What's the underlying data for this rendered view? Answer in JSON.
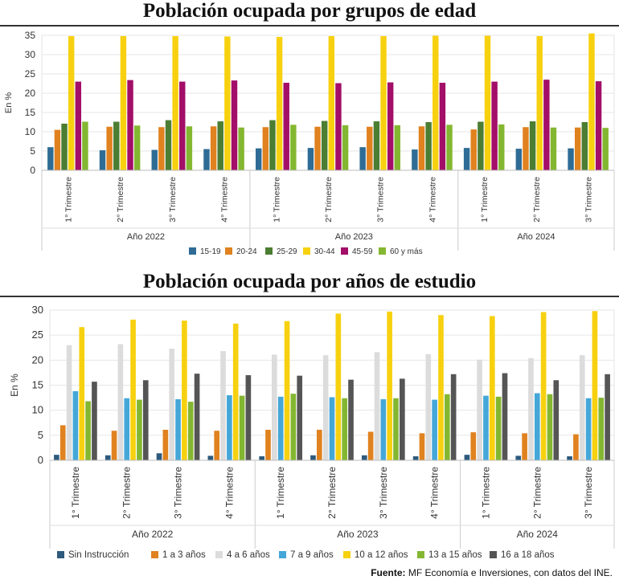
{
  "charts": [
    {
      "type": "bar",
      "title": "Población ocupada por grupos de edad",
      "ylabel": "En %",
      "ylim": [
        0,
        35
      ],
      "yticks": [
        0,
        5,
        10,
        15,
        20,
        25,
        30,
        35
      ],
      "categories": [
        "1° Trimestre",
        "2° Trimestre",
        "3° Trimestre",
        "4° Trimestre",
        "1° Trimestre",
        "2° Trimestre",
        "3° Trimestre",
        "4° Trimestre",
        "1° Trimestre",
        "2° Trimestre",
        "3° Trimestre"
      ],
      "groups": [
        {
          "label": "Año 2022",
          "count": 4
        },
        {
          "label": "Año 2023",
          "count": 4
        },
        {
          "label": "Año 2024",
          "count": 3
        }
      ],
      "series": [
        {
          "name": "15-19",
          "color": "#2e6c95",
          "values": [
            6.0,
            5.2,
            5.3,
            5.5,
            5.7,
            5.8,
            6.0,
            5.4,
            5.8,
            5.6,
            5.7
          ]
        },
        {
          "name": "20-24",
          "color": "#e0821f",
          "values": [
            10.5,
            11.3,
            11.2,
            11.4,
            11.2,
            11.3,
            11.3,
            11.4,
            10.6,
            11.2,
            11.1
          ]
        },
        {
          "name": "25-29",
          "color": "#4b7d32",
          "values": [
            12.1,
            12.6,
            13.0,
            12.7,
            13.0,
            12.8,
            12.7,
            12.5,
            12.6,
            12.7,
            12.5
          ]
        },
        {
          "name": "30-44",
          "color": "#f7d110",
          "values": [
            34.8,
            34.8,
            34.8,
            34.7,
            34.6,
            34.8,
            34.8,
            34.9,
            34.9,
            34.8,
            35.5
          ]
        },
        {
          "name": "45-59",
          "color": "#a30e68",
          "values": [
            23.0,
            23.4,
            23.0,
            23.3,
            22.7,
            22.6,
            22.8,
            22.7,
            23.0,
            23.5,
            23.1
          ]
        },
        {
          "name": "60 y más",
          "color": "#84b731",
          "values": [
            12.6,
            11.6,
            11.4,
            11.1,
            11.8,
            11.7,
            11.7,
            11.8,
            11.9,
            11.1,
            11.0
          ]
        }
      ],
      "legend_position": "bottom"
    },
    {
      "type": "bar",
      "title": "Población ocupada por años de estudio",
      "ylabel": "En %",
      "ylim": [
        0,
        30
      ],
      "yticks": [
        0,
        5,
        10,
        15,
        20,
        25,
        30
      ],
      "categories": [
        "1° Trimestre",
        "2° Trimestre",
        "3° Trimestre",
        "4° Trimestre",
        "1° Trimestre",
        "2° Trimestre",
        "3° Trimestre",
        "4° Trimestre",
        "1° Trimestre",
        "2° Trimestre",
        "3° Trimestre"
      ],
      "groups": [
        {
          "label": "Año 2022",
          "count": 4
        },
        {
          "label": "Año 2023",
          "count": 4
        },
        {
          "label": "Año 2024",
          "count": 3
        }
      ],
      "series": [
        {
          "name": "Sin Instrucción",
          "color": "#2d5a7d",
          "values": [
            1.1,
            1.0,
            1.4,
            0.9,
            0.8,
            1.0,
            1.0,
            0.8,
            1.1,
            0.9,
            0.8
          ]
        },
        {
          "name": "1 a 3 años",
          "color": "#e0821f",
          "values": [
            7.0,
            5.9,
            6.1,
            5.9,
            6.1,
            6.1,
            5.7,
            5.4,
            5.6,
            5.4,
            5.2
          ]
        },
        {
          "name": "4 a 6 años",
          "color": "#dcdcdc",
          "values": [
            23.0,
            23.2,
            22.3,
            21.8,
            21.1,
            21.0,
            21.6,
            21.2,
            20.1,
            20.4,
            21.0
          ]
        },
        {
          "name": "7 a 9 años",
          "color": "#45a7d8",
          "values": [
            13.8,
            12.4,
            12.2,
            13.0,
            12.7,
            12.6,
            12.2,
            12.1,
            12.9,
            13.4,
            12.4
          ]
        },
        {
          "name": "10 a 12 años",
          "color": "#f7d110",
          "values": [
            26.6,
            28.1,
            27.9,
            27.3,
            27.8,
            29.3,
            29.7,
            29.0,
            28.8,
            29.6,
            29.8
          ]
        },
        {
          "name": "13 a 15 años",
          "color": "#84b731",
          "values": [
            11.8,
            12.1,
            11.7,
            12.9,
            13.3,
            12.4,
            12.4,
            13.2,
            12.7,
            13.2,
            12.5
          ]
        },
        {
          "name": "16 a 18 años",
          "color": "#555555",
          "values": [
            15.7,
            16.0,
            17.3,
            17.0,
            16.9,
            16.1,
            16.3,
            17.2,
            17.4,
            16.0,
            17.2
          ]
        }
      ],
      "legend_position": "bottom"
    }
  ],
  "source": {
    "label": "Fuente:",
    "text": "MF Economía e Inversiones, con datos del INE."
  }
}
